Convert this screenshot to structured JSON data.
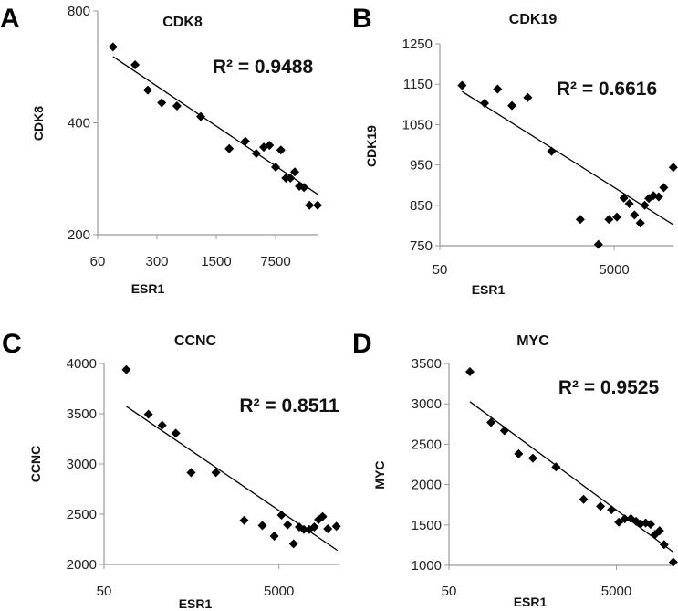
{
  "chart_data": [
    {
      "panel": "A",
      "type": "scatter",
      "title": "CDK8",
      "xlabel": "ESR1",
      "ylabel": "CDK8",
      "xscale": "log",
      "yscale": "log",
      "xlim": [
        60,
        23400
      ],
      "ylim": [
        200,
        800
      ],
      "xticks": [
        60,
        300,
        1500,
        7500
      ],
      "yticks": [
        200,
        400,
        800
      ],
      "annotation": "R² = 0.9488",
      "trendline": {
        "x": [
          91,
          23400
        ],
        "y": [
          603,
          257
        ]
      },
      "points": [
        [
          91,
          640
        ],
        [
          166,
          573
        ],
        [
          234,
          490
        ],
        [
          341,
          453
        ],
        [
          516,
          444
        ],
        [
          984,
          416
        ],
        [
          2130,
          341
        ],
        [
          3300,
          357
        ],
        [
          4440,
          331
        ],
        [
          5430,
          344
        ],
        [
          6350,
          348
        ],
        [
          8650,
          338
        ],
        [
          7500,
          304
        ],
        [
          9900,
          284
        ],
        [
          11200,
          284
        ],
        [
          12600,
          295
        ],
        [
          14300,
          270
        ],
        [
          16200,
          268
        ],
        [
          18800,
          240
        ],
        [
          23400,
          240
        ]
      ]
    },
    {
      "panel": "B",
      "type": "scatter",
      "title": "CDK19",
      "xlabel": "ESR1",
      "ylabel": "CDK19",
      "xscale": "log",
      "yscale": "linear",
      "xlim": [
        50,
        23900
      ],
      "ylim": [
        750,
        1250
      ],
      "xticks": [
        50,
        5000
      ],
      "yticks": [
        750,
        850,
        950,
        1050,
        1150,
        1250
      ],
      "annotation": "R² = 0.6616",
      "trendline": {
        "x": [
          90,
          23800
        ],
        "y": [
          1132,
          802
        ]
      },
      "points": [
        [
          90,
          1147
        ],
        [
          163,
          1103
        ],
        [
          230,
          1138
        ],
        [
          336,
          1097
        ],
        [
          510,
          1117
        ],
        [
          955,
          984
        ],
        [
          2040,
          815
        ],
        [
          3300,
          753
        ],
        [
          4360,
          815
        ],
        [
          5370,
          821
        ],
        [
          6450,
          868
        ],
        [
          7450,
          854
        ],
        [
          8550,
          826
        ],
        [
          9960,
          806
        ],
        [
          11200,
          850
        ],
        [
          12500,
          867
        ],
        [
          14100,
          874
        ],
        [
          16200,
          871
        ],
        [
          18500,
          894
        ],
        [
          23800,
          944
        ]
      ]
    },
    {
      "panel": "C",
      "type": "scatter",
      "title": "CCNC",
      "xlabel": "ESR1",
      "ylabel": "CCNC",
      "xscale": "log",
      "yscale": "linear",
      "xlim": [
        50,
        24600
      ],
      "ylim": [
        2000,
        4000
      ],
      "xticks": [
        50,
        5000
      ],
      "yticks": [
        2000,
        2500,
        3000,
        3500,
        4000
      ],
      "annotation": "R² = 0.8511",
      "trendline": {
        "x": [
          90,
          23300
        ],
        "y": [
          3573,
          2140
        ]
      },
      "points": [
        [
          90,
          3939
        ],
        [
          161,
          3494
        ],
        [
          231,
          3385
        ],
        [
          331,
          3306
        ],
        [
          495,
          2915
        ],
        [
          950,
          2915
        ],
        [
          2000,
          2439
        ],
        [
          3230,
          2388
        ],
        [
          4420,
          2282
        ],
        [
          5350,
          2491
        ],
        [
          6290,
          2394
        ],
        [
          7350,
          2206
        ],
        [
          8550,
          2373
        ],
        [
          9650,
          2348
        ],
        [
          11100,
          2348
        ],
        [
          12700,
          2373
        ],
        [
          14200,
          2446
        ],
        [
          15800,
          2476
        ],
        [
          18100,
          2355
        ],
        [
          22700,
          2379
        ]
      ]
    },
    {
      "panel": "D",
      "type": "scatter",
      "title": "MYC",
      "xlabel": "ESR1",
      "ylabel": "MYC",
      "xscale": "log",
      "yscale": "linear",
      "xlim": [
        50,
        24000
      ],
      "ylim": [
        1000,
        3500
      ],
      "xticks": [
        50,
        5000
      ],
      "yticks": [
        1000,
        1500,
        2000,
        2500,
        3000,
        3500
      ],
      "annotation": "R² = 0.9525",
      "trendline": {
        "x": [
          89,
          23900
        ],
        "y": [
          3027,
          1164
        ]
      },
      "points": [
        [
          89,
          3398
        ],
        [
          159,
          2770
        ],
        [
          230,
          2668
        ],
        [
          340,
          2381
        ],
        [
          502,
          2328
        ],
        [
          950,
          2219
        ],
        [
          2030,
          1817
        ],
        [
          3230,
          1731
        ],
        [
          4370,
          1689
        ],
        [
          5350,
          1534
        ],
        [
          6300,
          1576
        ],
        [
          7430,
          1580
        ],
        [
          8600,
          1545
        ],
        [
          9750,
          1515
        ],
        [
          11200,
          1525
        ],
        [
          12800,
          1508
        ],
        [
          14500,
          1383
        ],
        [
          16400,
          1428
        ],
        [
          18600,
          1258
        ],
        [
          23900,
          1039
        ]
      ]
    }
  ]
}
